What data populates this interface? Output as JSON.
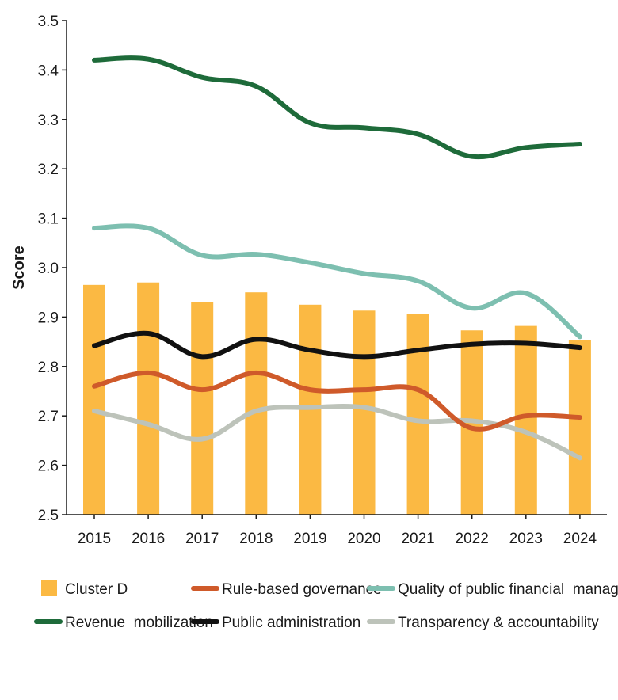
{
  "chart_data": {
    "type": "bar+line",
    "title": "",
    "xlabel": "",
    "ylabel": "Score",
    "ylim": [
      2.5,
      3.5
    ],
    "yticks": [
      "2.5",
      "2.6",
      "2.7",
      "2.8",
      "2.9",
      "3.0",
      "3.1",
      "3.2",
      "3.3",
      "3.4",
      "3.5"
    ],
    "grid": false,
    "categories": [
      "2015",
      "2016",
      "2017",
      "2018",
      "2019",
      "2020",
      "2021",
      "2022",
      "2023",
      "2024"
    ],
    "bars": {
      "name": "Cluster D",
      "color": "#FBB943",
      "values": [
        2.965,
        2.97,
        2.93,
        2.95,
        2.925,
        2.913,
        2.906,
        2.873,
        2.882,
        2.853
      ]
    },
    "series": [
      {
        "name": "Rule-based governance",
        "color": "#CF5A2A",
        "values": [
          2.76,
          2.787,
          2.753,
          2.787,
          2.753,
          2.753,
          2.753,
          2.675,
          2.7,
          2.697
        ]
      },
      {
        "name": "Quality of public financial  management",
        "color": "#7DBFB0",
        "values": [
          3.08,
          3.08,
          3.025,
          3.027,
          3.01,
          2.988,
          2.973,
          2.918,
          2.948,
          2.86
        ]
      },
      {
        "name": "Revenue  mobilization",
        "color": "#1E6B3A",
        "values": [
          3.42,
          3.422,
          3.385,
          3.367,
          3.293,
          3.283,
          3.27,
          3.225,
          3.243,
          3.25
        ]
      },
      {
        "name": "Public administration",
        "color": "#111111",
        "values": [
          2.842,
          2.867,
          2.82,
          2.855,
          2.833,
          2.82,
          2.833,
          2.845,
          2.847,
          2.838
        ]
      },
      {
        "name": "Transparency & accountability",
        "color": "#BDC3BA",
        "values": [
          2.71,
          2.683,
          2.653,
          2.71,
          2.717,
          2.717,
          2.69,
          2.69,
          2.667,
          2.615
        ]
      }
    ],
    "legend": {
      "placement": "bottom",
      "rows": [
        [
          "Cluster D",
          "Rule-based governance",
          "Quality of public financial  management"
        ],
        [
          "Revenue  mobilization",
          "Public administration",
          "Transparency & accountability"
        ]
      ]
    }
  }
}
